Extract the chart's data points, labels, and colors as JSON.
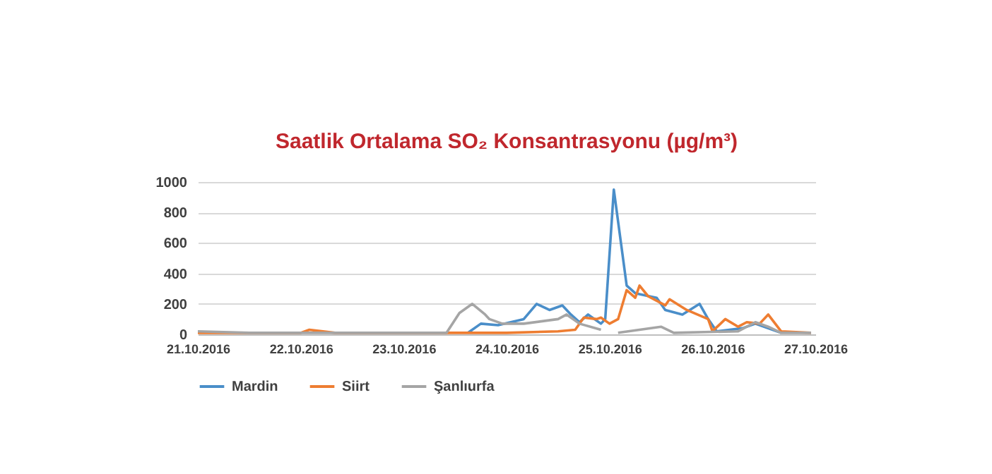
{
  "chart_data": {
    "type": "line",
    "title": "Saatlik Ortalama SO₂ Konsantrasyonu (µg/m³)",
    "xlim": [
      "2016-10-21",
      "2016-10-27"
    ],
    "xticks": [
      {
        "value": "2016-10-21",
        "label": "21.10.2016"
      },
      {
        "value": "2016-10-22",
        "label": "22.10.2016"
      },
      {
        "value": "2016-10-23",
        "label": "23.10.2016"
      },
      {
        "value": "2016-10-24",
        "label": "24.10.2016"
      },
      {
        "value": "2016-10-25",
        "label": "25.10.2016"
      },
      {
        "value": "2016-10-26",
        "label": "26.10.2016"
      },
      {
        "value": "2016-10-27",
        "label": "27.10.2016"
      }
    ],
    "ylim": [
      0,
      1000
    ],
    "yticks": [
      0,
      200,
      400,
      600,
      800,
      1000
    ],
    "grid": "y",
    "legend": "bottom",
    "series": [
      {
        "name": "Mardin",
        "color": "#4a8ec9",
        "x": [
          "2016-10-23T15:00",
          "2016-10-23T18:00",
          "2016-10-23T22:00",
          "2016-10-24T04:00",
          "2016-10-24T07:00",
          "2016-10-24T10:00",
          "2016-10-24T13:00",
          "2016-10-24T15:00",
          "2016-10-24T17:00",
          "2016-10-24T19:00",
          "2016-10-24T22:00",
          "2016-10-24T23:00",
          "2016-10-25T01:00",
          "2016-10-25T04:00",
          "2016-10-25T06:00",
          "2016-10-25T11:00",
          "2016-10-25T13:00",
          "2016-10-25T17:00",
          "2016-10-25T21:00",
          "2016-10-25T23:00",
          "2016-10-26T01:00",
          "2016-10-26T07:00",
          "2016-10-26T10:00",
          "2016-10-26T13:00",
          "2016-10-26T16:00"
        ],
        "values": [
          10,
          70,
          60,
          100,
          200,
          160,
          190,
          130,
          80,
          130,
          70,
          100,
          950,
          320,
          270,
          240,
          160,
          130,
          200,
          100,
          20,
          40,
          70,
          40,
          10
        ]
      },
      {
        "name": "Siirt",
        "color": "#ee7d31",
        "x": [
          "2016-10-21T00:00",
          "2016-10-21T18:00",
          "2016-10-22T00:00",
          "2016-10-22T02:00",
          "2016-10-22T08:00",
          "2016-10-23T00:00",
          "2016-10-23T12:00",
          "2016-10-24T00:00",
          "2016-10-24T12:00",
          "2016-10-24T16:00",
          "2016-10-24T18:00",
          "2016-10-24T21:00",
          "2016-10-24T22:00",
          "2016-10-25T00:00",
          "2016-10-25T02:00",
          "2016-10-25T04:00",
          "2016-10-25T06:00",
          "2016-10-25T07:00",
          "2016-10-25T09:00",
          "2016-10-25T13:00",
          "2016-10-25T14:00",
          "2016-10-25T18:00",
          "2016-10-25T23:00",
          "2016-10-26T00:00",
          "2016-10-26T03:00",
          "2016-10-26T06:00",
          "2016-10-26T08:00",
          "2016-10-26T11:00",
          "2016-10-26T13:00",
          "2016-10-26T16:00",
          "2016-10-26T23:00"
        ],
        "values": [
          10,
          10,
          10,
          30,
          10,
          10,
          10,
          10,
          20,
          30,
          110,
          100,
          110,
          70,
          100,
          290,
          240,
          320,
          250,
          190,
          230,
          160,
          100,
          20,
          100,
          50,
          80,
          70,
          130,
          20,
          10
        ]
      },
      {
        "name": "Şanlıurfa",
        "color": "#a5a5a5",
        "x": [
          "2016-10-21T00:00",
          "2016-10-21T12:00",
          "2016-10-22T00:00",
          "2016-10-22T12:00",
          "2016-10-23T00:00",
          "2016-10-23T10:00",
          "2016-10-23T13:00",
          "2016-10-23T16:00",
          "2016-10-23T19:00",
          "2016-10-23T20:00",
          "2016-10-23T23:00",
          "2016-10-24T04:00",
          "2016-10-24T12:00",
          "2016-10-24T14:00",
          "2016-10-24T17:00",
          "2016-10-24T22:00",
          "2016-10-25T00:00",
          "2016-10-25T02:00",
          "2016-10-25T12:00",
          "2016-10-25T15:00",
          "2016-10-26T06:00",
          "2016-10-26T10:00",
          "2016-10-26T13:00",
          "2016-10-26T16:00",
          "2016-10-26T23:00"
        ],
        "values": [
          20,
          10,
          10,
          10,
          10,
          10,
          140,
          200,
          130,
          100,
          70,
          70,
          100,
          130,
          70,
          30,
          null,
          10,
          50,
          10,
          20,
          80,
          50,
          10,
          10
        ]
      }
    ]
  }
}
